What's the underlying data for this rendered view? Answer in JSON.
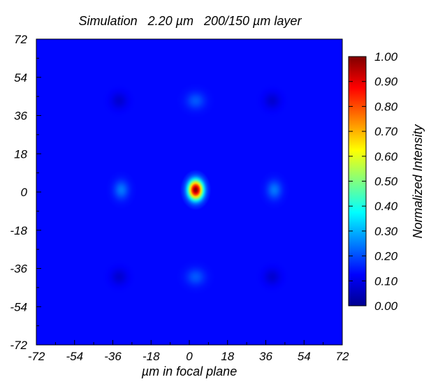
{
  "chart_data": {
    "type": "heatmap",
    "title": "Simulation   2.20 µm   200/150 µm layer",
    "xlabel": "µm in focal plane",
    "ylabel": "",
    "xlim": [
      -72,
      72
    ],
    "ylim": [
      -72,
      72
    ],
    "x_ticks": [
      "-72",
      "-54",
      "-36",
      "-18",
      "0",
      "18",
      "36",
      "54",
      "72"
    ],
    "y_ticks": [
      "72",
      "54",
      "36",
      "18",
      "0",
      "-18",
      "-36",
      "-54",
      "-72"
    ],
    "x_tick_values": [
      -72,
      -54,
      -36,
      -18,
      0,
      18,
      36,
      54,
      72
    ],
    "y_tick_values": [
      72,
      54,
      36,
      18,
      0,
      -18,
      -36,
      -54,
      -72
    ],
    "colorbar": {
      "label": "Normalized Intensity",
      "range": [
        0,
        1
      ],
      "colormap": "jet",
      "tick_values": [
        1.0,
        0.9,
        0.8,
        0.7,
        0.6,
        0.5,
        0.4,
        0.3,
        0.2,
        0.1,
        0.0
      ],
      "tick_labels": [
        "1.00",
        "0.90",
        "0.80",
        "0.70",
        "0.60",
        "0.50",
        "0.40",
        "0.30",
        "0.20",
        "0.10",
        "0.00"
      ]
    },
    "peaks": [
      {
        "name": "central-peak",
        "x": 3,
        "y": 1,
        "intensity": 1.0,
        "sigma_x": 3.2,
        "sigma_y": 4.2
      },
      {
        "name": "left-peak",
        "x": -32,
        "y": 1,
        "intensity": 0.24,
        "sigma_x": 3.2,
        "sigma_y": 4.0
      },
      {
        "name": "right-peak",
        "x": 40,
        "y": 1,
        "intensity": 0.24,
        "sigma_x": 3.2,
        "sigma_y": 4.0
      },
      {
        "name": "top-peak",
        "x": 3,
        "y": 43,
        "intensity": 0.21,
        "sigma_x": 4.0,
        "sigma_y": 3.6
      },
      {
        "name": "bottom-peak",
        "x": 3,
        "y": -40,
        "intensity": 0.21,
        "sigma_x": 4.0,
        "sigma_y": 3.6
      },
      {
        "name": "top-left-peak",
        "x": -33,
        "y": 43,
        "intensity": 0.08,
        "sigma_x": 3.5,
        "sigma_y": 3.5
      },
      {
        "name": "top-right-peak",
        "x": 39,
        "y": 43,
        "intensity": 0.08,
        "sigma_x": 3.5,
        "sigma_y": 3.5
      },
      {
        "name": "bottom-left-peak",
        "x": -33,
        "y": -40,
        "intensity": 0.08,
        "sigma_x": 3.5,
        "sigma_y": 3.5
      },
      {
        "name": "bottom-right-peak",
        "x": 39,
        "y": -40,
        "intensity": 0.08,
        "sigma_x": 3.5,
        "sigma_y": 3.5
      }
    ],
    "background_intensity": 0.13
  }
}
